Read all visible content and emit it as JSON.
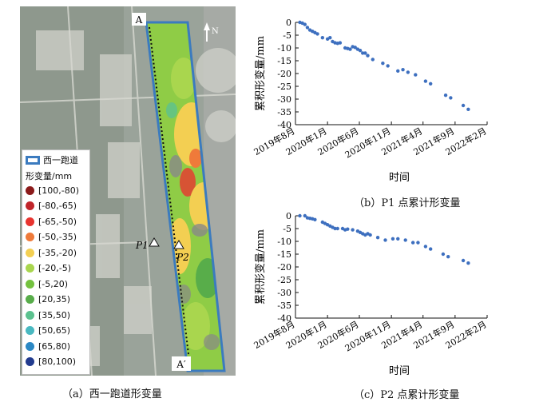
{
  "map": {
    "label_a": "A",
    "label_a_prime": "A′",
    "label_p1": "P1",
    "label_p2": "P2",
    "north": "N"
  },
  "legend": {
    "title": "西一跑道",
    "subtitle": "形变量/mm",
    "items": [
      {
        "label": "[100,-80)",
        "color": "#8b1a1a"
      },
      {
        "label": "[-80,-65)",
        "color": "#c0252a"
      },
      {
        "label": "[-65,-50)",
        "color": "#e8342f"
      },
      {
        "label": "[-50,-35)",
        "color": "#ef7a3a"
      },
      {
        "label": "[-35,-20)",
        "color": "#f3cf52"
      },
      {
        "label": "[-20,-5)",
        "color": "#a9d64e"
      },
      {
        "label": "[-5,20)",
        "color": "#74c23f"
      },
      {
        "label": "[20,35)",
        "color": "#58ad4a"
      },
      {
        "label": "[35,50)",
        "color": "#5cc28f"
      },
      {
        "label": "[50,65)",
        "color": "#49b9c1"
      },
      {
        "label": "[65,80)",
        "color": "#2b88c4"
      },
      {
        "label": "[80,100)",
        "color": "#223b8e"
      }
    ]
  },
  "captions": {
    "a": "（a）西一跑道形变量",
    "b": "（b）P1 点累计形变量",
    "c": "（c）P2 点累计形变量"
  },
  "chart_data": [
    {
      "type": "scatter",
      "name": "P1",
      "xlabel": "时间",
      "ylabel": "累积形变量/mm",
      "ylim": [
        -40,
        0
      ],
      "yticks": [
        0,
        -5,
        -10,
        -15,
        -20,
        -25,
        -30,
        -35,
        -40
      ],
      "xlim": [
        "2019-08-01",
        "2022-02-01"
      ],
      "xticks": [
        "2019-08-01",
        "2020-01-01",
        "2020-06-01",
        "2020-11-01",
        "2021-04-01",
        "2021-09-01",
        "2022-02-01"
      ],
      "xtick_labels": [
        "2019年8月",
        "2020年1月",
        "2020年6月",
        "2020年11月",
        "2021年4月",
        "2021年9月",
        "2022年2月"
      ],
      "color": "#3d6fbf",
      "points": [
        {
          "x": "2019-08-22",
          "y": 0
        },
        {
          "x": "2019-09-03",
          "y": -0.3
        },
        {
          "x": "2019-09-15",
          "y": -0.8
        },
        {
          "x": "2019-09-27",
          "y": -2.0
        },
        {
          "x": "2019-10-09",
          "y": -3.0
        },
        {
          "x": "2019-10-21",
          "y": -3.5
        },
        {
          "x": "2019-11-02",
          "y": -4.0
        },
        {
          "x": "2019-11-14",
          "y": -4.5
        },
        {
          "x": "2019-12-08",
          "y": -6.0
        },
        {
          "x": "2020-01-01",
          "y": -6.5
        },
        {
          "x": "2020-01-13",
          "y": -6.0
        },
        {
          "x": "2020-01-25",
          "y": -7.5
        },
        {
          "x": "2020-02-06",
          "y": -8.0
        },
        {
          "x": "2020-02-18",
          "y": -8.2
        },
        {
          "x": "2020-03-01",
          "y": -8.0
        },
        {
          "x": "2020-03-25",
          "y": -10.0
        },
        {
          "x": "2020-04-06",
          "y": -10.2
        },
        {
          "x": "2020-04-18",
          "y": -10.5
        },
        {
          "x": "2020-04-30",
          "y": -9.5
        },
        {
          "x": "2020-05-12",
          "y": -9.8
        },
        {
          "x": "2020-05-24",
          "y": -10.5
        },
        {
          "x": "2020-06-05",
          "y": -11.0
        },
        {
          "x": "2020-06-17",
          "y": -12.0
        },
        {
          "x": "2020-06-29",
          "y": -12.0
        },
        {
          "x": "2020-07-11",
          "y": -13.0
        },
        {
          "x": "2020-08-04",
          "y": -14.5
        },
        {
          "x": "2020-09-21",
          "y": -16.0
        },
        {
          "x": "2020-10-15",
          "y": -17.0
        },
        {
          "x": "2020-12-02",
          "y": -19.0
        },
        {
          "x": "2020-12-26",
          "y": -18.5
        },
        {
          "x": "2021-01-19",
          "y": -19.5
        },
        {
          "x": "2021-02-24",
          "y": -20.5
        },
        {
          "x": "2021-04-13",
          "y": -23.0
        },
        {
          "x": "2021-05-07",
          "y": -24.0
        },
        {
          "x": "2021-07-18",
          "y": -28.5
        },
        {
          "x": "2021-08-11",
          "y": -29.5
        },
        {
          "x": "2021-10-10",
          "y": -32.5
        },
        {
          "x": "2021-11-03",
          "y": -34.0
        }
      ]
    },
    {
      "type": "scatter",
      "name": "P2",
      "xlabel": "时间",
      "ylabel": "累积形变量/mm",
      "ylim": [
        -40,
        0
      ],
      "yticks": [
        0,
        -5,
        -10,
        -15,
        -20,
        -25,
        -30,
        -35,
        -40
      ],
      "xlim": [
        "2019-08-01",
        "2022-02-01"
      ],
      "xticks": [
        "2019-08-01",
        "2020-01-01",
        "2020-06-01",
        "2020-11-01",
        "2021-04-01",
        "2021-09-01",
        "2022-02-01"
      ],
      "xtick_labels": [
        "2019年8月",
        "2020年1月",
        "2020年6月",
        "2020年11月",
        "2021年4月",
        "2021年9月",
        "2022年2月"
      ],
      "color": "#3d6fbf",
      "points": [
        {
          "x": "2019-08-22",
          "y": 0
        },
        {
          "x": "2019-09-15",
          "y": 0
        },
        {
          "x": "2019-09-27",
          "y": -0.8
        },
        {
          "x": "2019-10-09",
          "y": -1.0
        },
        {
          "x": "2019-10-21",
          "y": -1.2
        },
        {
          "x": "2019-11-02",
          "y": -1.5
        },
        {
          "x": "2019-12-08",
          "y": -2.5
        },
        {
          "x": "2019-12-20",
          "y": -3.0
        },
        {
          "x": "2020-01-01",
          "y": -3.5
        },
        {
          "x": "2020-01-13",
          "y": -4.0
        },
        {
          "x": "2020-01-25",
          "y": -4.5
        },
        {
          "x": "2020-02-06",
          "y": -5.0
        },
        {
          "x": "2020-02-18",
          "y": -5.0
        },
        {
          "x": "2020-03-13",
          "y": -5.0
        },
        {
          "x": "2020-03-25",
          "y": -5.5
        },
        {
          "x": "2020-04-06",
          "y": -5.2
        },
        {
          "x": "2020-04-30",
          "y": -5.5
        },
        {
          "x": "2020-05-24",
          "y": -6.0
        },
        {
          "x": "2020-06-05",
          "y": -6.5
        },
        {
          "x": "2020-06-17",
          "y": -7.0
        },
        {
          "x": "2020-06-29",
          "y": -7.5
        },
        {
          "x": "2020-07-11",
          "y": -7.0
        },
        {
          "x": "2020-07-23",
          "y": -7.5
        },
        {
          "x": "2020-08-28",
          "y": -8.5
        },
        {
          "x": "2020-10-03",
          "y": -9.5
        },
        {
          "x": "2020-11-08",
          "y": -9.0
        },
        {
          "x": "2020-12-02",
          "y": -9.0
        },
        {
          "x": "2021-01-07",
          "y": -9.5
        },
        {
          "x": "2021-02-12",
          "y": -10.5
        },
        {
          "x": "2021-03-08",
          "y": -10.5
        },
        {
          "x": "2021-04-13",
          "y": -12.0
        },
        {
          "x": "2021-05-07",
          "y": -13.0
        },
        {
          "x": "2021-07-06",
          "y": -15.0
        },
        {
          "x": "2021-07-30",
          "y": -16.0
        },
        {
          "x": "2021-10-10",
          "y": -17.5
        },
        {
          "x": "2021-11-03",
          "y": -18.5
        }
      ]
    }
  ]
}
